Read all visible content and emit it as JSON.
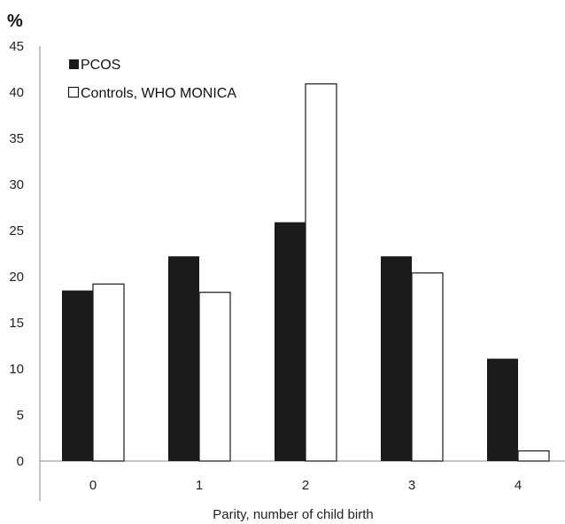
{
  "chart_data": {
    "type": "bar",
    "ylabel": "%",
    "xlabel": "Parity, number of child birth",
    "categories": [
      "0",
      "1",
      "2",
      "3",
      "4"
    ],
    "ylim": [
      0,
      45
    ],
    "yticks": [
      0,
      5,
      10,
      15,
      20,
      25,
      30,
      35,
      40,
      45
    ],
    "grid": false,
    "legend_position": "top-left",
    "series": [
      {
        "name": "PCOS",
        "values": [
          18.5,
          22.2,
          25.9,
          22.2,
          11.1
        ],
        "color": "#1a1a1a"
      },
      {
        "name": "Controls, WHO MONICA",
        "values": [
          19.2,
          18.3,
          40.9,
          20.4,
          1.1
        ],
        "color": "#ffffff"
      }
    ]
  }
}
